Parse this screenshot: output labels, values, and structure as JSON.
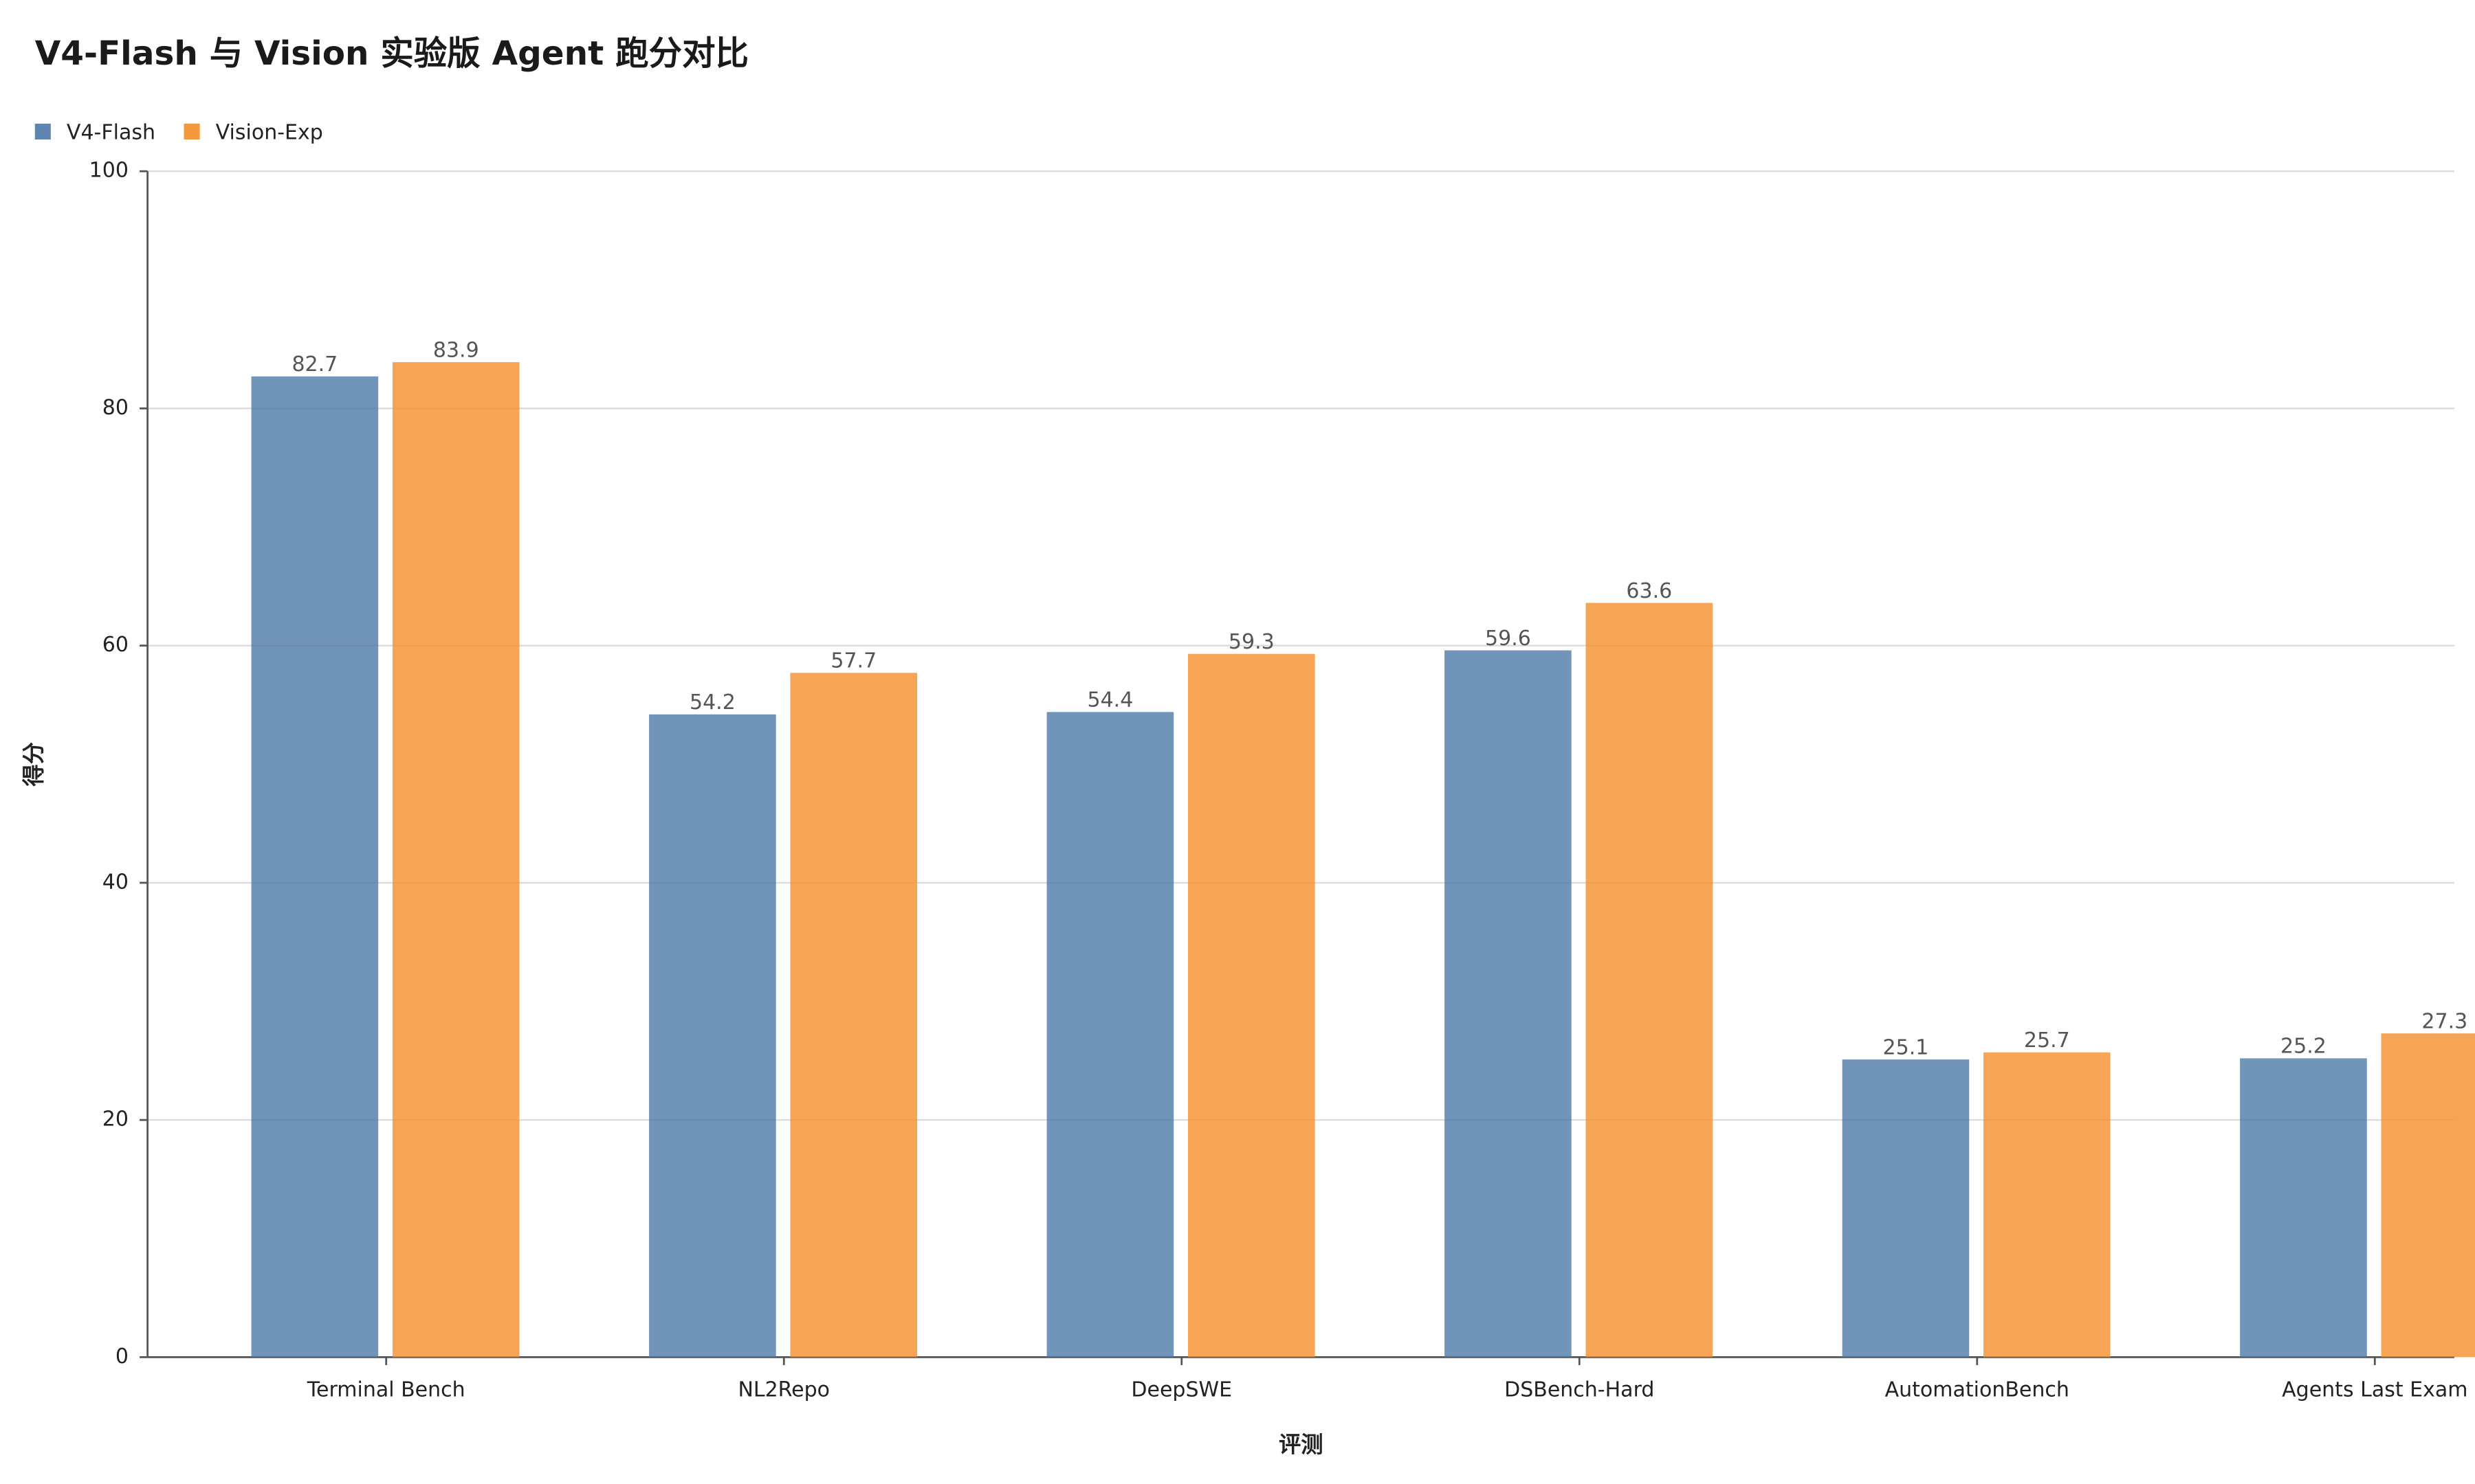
{
  "chart_data": {
    "type": "bar",
    "title": "V4-Flash 与 Vision 实验版 Agent 跑分对比",
    "x_label": "评测",
    "y_label": "得分",
    "categories": [
      "Terminal Bench",
      "NL2Repo",
      "DeepSWE",
      "DSBench-Hard",
      "AutomationBench",
      "Agents Last Exam"
    ],
    "series": [
      {
        "name": "V4-Flash",
        "color": "#4e79a7",
        "values": [
          82.7,
          54.2,
          54.4,
          59.6,
          25.1,
          25.2
        ]
      },
      {
        "name": "Vision-Exp",
        "color": "#f28e2b",
        "values": [
          83.9,
          57.7,
          59.3,
          63.6,
          25.7,
          27.3
        ]
      }
    ],
    "ylim": [
      0,
      100
    ],
    "yticks": [
      0,
      20,
      40,
      60,
      80,
      100
    ],
    "grid": true,
    "legend": "top-left"
  }
}
